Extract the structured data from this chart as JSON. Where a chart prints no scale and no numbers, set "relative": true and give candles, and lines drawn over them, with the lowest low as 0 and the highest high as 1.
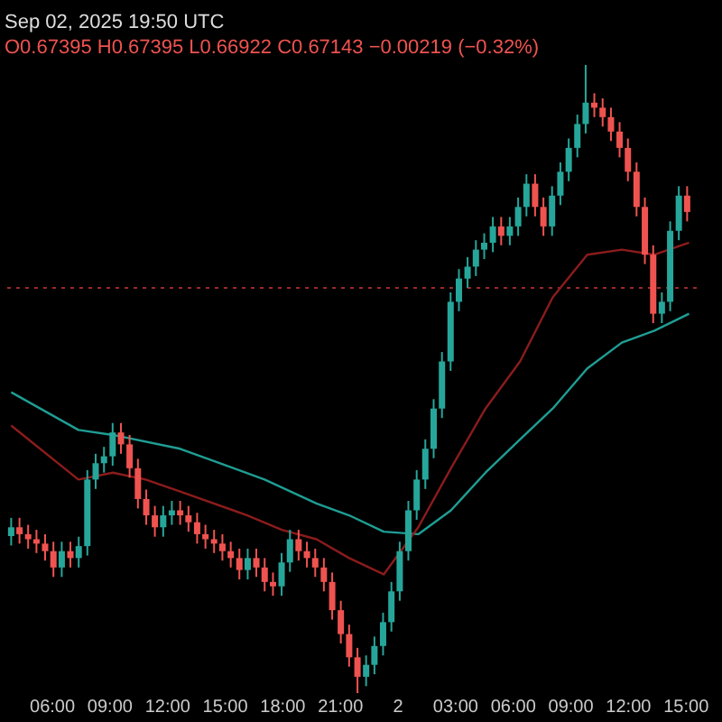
{
  "chart_data": {
    "type": "candlestick",
    "title": "Sep 02, 2025 19:50 UTC",
    "subtitle": "O0.67395 H0.67395 L0.66922 C0.67143 −0.00219 (−0.32%)",
    "relative": true,
    "grid": false,
    "x": [
      "2025-09-01T03:54",
      "2025-09-01T04:20",
      "2025-09-01T04:47",
      "2025-09-01T05:13",
      "2025-09-01T05:40",
      "2025-09-01T06:06",
      "2025-09-01T06:32",
      "2025-09-01T06:59",
      "2025-09-01T07:25",
      "2025-09-01T07:52",
      "2025-09-01T08:18",
      "2025-09-01T08:44",
      "2025-09-01T09:11",
      "2025-09-01T09:37",
      "2025-09-01T10:04",
      "2025-09-01T10:30",
      "2025-09-01T10:56",
      "2025-09-01T11:23",
      "2025-09-01T11:49",
      "2025-09-01T12:16",
      "2025-09-01T12:42",
      "2025-09-01T13:08",
      "2025-09-01T13:35",
      "2025-09-01T14:01",
      "2025-09-01T14:28",
      "2025-09-01T14:54",
      "2025-09-01T15:20",
      "2025-09-01T15:47",
      "2025-09-01T16:13",
      "2025-09-01T16:40",
      "2025-09-01T17:06",
      "2025-09-01T17:32",
      "2025-09-01T17:59",
      "2025-09-01T18:25",
      "2025-09-01T18:52",
      "2025-09-01T19:18",
      "2025-09-01T19:44",
      "2025-09-01T20:11",
      "2025-09-01T20:37",
      "2025-09-01T21:04",
      "2025-09-01T21:30",
      "2025-09-01T21:56",
      "2025-09-01T22:23",
      "2025-09-01T22:49",
      "2025-09-01T23:16",
      "2025-09-01T23:42",
      "2025-09-02T00:08",
      "2025-09-02T00:35",
      "2025-09-02T01:01",
      "2025-09-02T01:28",
      "2025-09-02T01:54",
      "2025-09-02T02:20",
      "2025-09-02T02:47",
      "2025-09-02T03:13",
      "2025-09-02T03:40",
      "2025-09-02T04:06",
      "2025-09-02T04:32",
      "2025-09-02T04:59",
      "2025-09-02T05:25",
      "2025-09-02T05:52",
      "2025-09-02T06:18",
      "2025-09-02T06:44",
      "2025-09-02T07:11",
      "2025-09-02T07:37",
      "2025-09-02T08:04",
      "2025-09-02T08:30",
      "2025-09-02T08:56",
      "2025-09-02T09:23",
      "2025-09-02T09:49",
      "2025-09-02T10:16",
      "2025-09-02T10:42",
      "2025-09-02T11:08",
      "2025-09-02T11:35",
      "2025-09-02T12:01",
      "2025-09-02T12:28",
      "2025-09-02T12:54",
      "2025-09-02T13:20",
      "2025-09-02T13:47",
      "2025-09-02T14:13",
      "2025-09-02T14:40",
      "2025-09-02T15:06"
    ],
    "ohlc": [
      [
        0.25,
        0.279,
        0.235,
        0.264
      ],
      [
        0.264,
        0.279,
        0.238,
        0.253
      ],
      [
        0.253,
        0.268,
        0.23,
        0.245
      ],
      [
        0.245,
        0.26,
        0.223,
        0.238
      ],
      [
        0.238,
        0.253,
        0.211,
        0.226
      ],
      [
        0.226,
        0.241,
        0.185,
        0.2
      ],
      [
        0.2,
        0.241,
        0.185,
        0.226
      ],
      [
        0.226,
        0.241,
        0.2,
        0.215
      ],
      [
        0.215,
        0.249,
        0.2,
        0.234
      ],
      [
        0.234,
        0.355,
        0.219,
        0.34
      ],
      [
        0.34,
        0.381,
        0.325,
        0.366
      ],
      [
        0.366,
        0.392,
        0.351,
        0.377
      ],
      [
        0.377,
        0.43,
        0.362,
        0.415
      ],
      [
        0.415,
        0.43,
        0.381,
        0.396
      ],
      [
        0.396,
        0.411,
        0.343,
        0.358
      ],
      [
        0.358,
        0.373,
        0.294,
        0.309
      ],
      [
        0.309,
        0.324,
        0.268,
        0.283
      ],
      [
        0.283,
        0.298,
        0.249,
        0.264
      ],
      [
        0.264,
        0.298,
        0.249,
        0.283
      ],
      [
        0.283,
        0.306,
        0.268,
        0.291
      ],
      [
        0.291,
        0.306,
        0.268,
        0.283
      ],
      [
        0.283,
        0.298,
        0.257,
        0.272
      ],
      [
        0.272,
        0.287,
        0.238,
        0.253
      ],
      [
        0.253,
        0.268,
        0.23,
        0.245
      ],
      [
        0.245,
        0.26,
        0.223,
        0.238
      ],
      [
        0.238,
        0.253,
        0.211,
        0.226
      ],
      [
        0.226,
        0.241,
        0.2,
        0.215
      ],
      [
        0.215,
        0.23,
        0.181,
        0.196
      ],
      [
        0.196,
        0.23,
        0.181,
        0.215
      ],
      [
        0.215,
        0.23,
        0.185,
        0.2
      ],
      [
        0.2,
        0.215,
        0.162,
        0.177
      ],
      [
        0.177,
        0.192,
        0.155,
        0.17
      ],
      [
        0.17,
        0.223,
        0.155,
        0.208
      ],
      [
        0.208,
        0.26,
        0.193,
        0.245
      ],
      [
        0.245,
        0.26,
        0.211,
        0.226
      ],
      [
        0.226,
        0.241,
        0.2,
        0.215
      ],
      [
        0.215,
        0.23,
        0.185,
        0.2
      ],
      [
        0.2,
        0.215,
        0.162,
        0.177
      ],
      [
        0.177,
        0.192,
        0.117,
        0.132
      ],
      [
        0.132,
        0.147,
        0.079,
        0.094
      ],
      [
        0.094,
        0.109,
        0.042,
        0.057
      ],
      [
        0.057,
        0.072,
        0.0,
        0.026
      ],
      [
        0.026,
        0.06,
        0.011,
        0.045
      ],
      [
        0.045,
        0.09,
        0.03,
        0.075
      ],
      [
        0.075,
        0.128,
        0.06,
        0.113
      ],
      [
        0.113,
        0.177,
        0.098,
        0.162
      ],
      [
        0.162,
        0.241,
        0.147,
        0.226
      ],
      [
        0.226,
        0.306,
        0.211,
        0.291
      ],
      [
        0.291,
        0.355,
        0.276,
        0.34
      ],
      [
        0.34,
        0.404,
        0.325,
        0.389
      ],
      [
        0.389,
        0.468,
        0.374,
        0.453
      ],
      [
        0.453,
        0.543,
        0.438,
        0.528
      ],
      [
        0.528,
        0.638,
        0.513,
        0.623
      ],
      [
        0.623,
        0.675,
        0.608,
        0.66
      ],
      [
        0.66,
        0.694,
        0.645,
        0.679
      ],
      [
        0.679,
        0.721,
        0.664,
        0.706
      ],
      [
        0.706,
        0.732,
        0.691,
        0.717
      ],
      [
        0.717,
        0.758,
        0.702,
        0.743
      ],
      [
        0.743,
        0.758,
        0.713,
        0.728
      ],
      [
        0.728,
        0.758,
        0.713,
        0.743
      ],
      [
        0.743,
        0.789,
        0.728,
        0.774
      ],
      [
        0.774,
        0.826,
        0.759,
        0.811
      ],
      [
        0.811,
        0.826,
        0.759,
        0.774
      ],
      [
        0.774,
        0.789,
        0.728,
        0.743
      ],
      [
        0.743,
        0.807,
        0.728,
        0.792
      ],
      [
        0.792,
        0.845,
        0.777,
        0.83
      ],
      [
        0.83,
        0.883,
        0.815,
        0.868
      ],
      [
        0.868,
        0.921,
        0.853,
        0.906
      ],
      [
        0.906,
        1.0,
        0.891,
        0.94
      ],
      [
        0.94,
        0.955,
        0.917,
        0.932
      ],
      [
        0.932,
        0.947,
        0.902,
        0.917
      ],
      [
        0.917,
        0.932,
        0.879,
        0.894
      ],
      [
        0.894,
        0.909,
        0.853,
        0.868
      ],
      [
        0.868,
        0.883,
        0.815,
        0.83
      ],
      [
        0.83,
        0.845,
        0.759,
        0.774
      ],
      [
        0.774,
        0.789,
        0.683,
        0.698
      ],
      [
        0.698,
        0.713,
        0.589,
        0.604
      ],
      [
        0.604,
        0.638,
        0.589,
        0.623
      ],
      [
        0.623,
        0.751,
        0.608,
        0.736
      ],
      [
        0.736,
        0.807,
        0.721,
        0.792
      ],
      [
        0.792,
        0.807,
        0.751,
        0.766
      ]
    ],
    "series": [
      {
        "type": "line",
        "color": "#1f9e94",
        "x": [
          "2025-09-01T03:54",
          "2025-09-01T07:24",
          "2025-09-01T09:12",
          "2025-09-01T12:42",
          "2025-09-01T17:06",
          "2025-09-01T19:48",
          "2025-09-01T21:30",
          "2025-09-01T23:18",
          "2025-09-02T01:06",
          "2025-09-02T02:48",
          "2025-09-02T04:36",
          "2025-09-02T06:24",
          "2025-09-02T08:06",
          "2025-09-02T09:54",
          "2025-09-02T11:42",
          "2025-09-02T13:24",
          "2025-09-02T15:12"
        ],
        "values": [
          0.479,
          0.419,
          0.411,
          0.389,
          0.34,
          0.302,
          0.283,
          0.257,
          0.253,
          0.291,
          0.351,
          0.404,
          0.453,
          0.517,
          0.558,
          0.577,
          0.604
        ]
      },
      {
        "type": "line",
        "color": "#8b1c1c",
        "x": [
          "2025-09-01T03:54",
          "2025-09-01T07:24",
          "2025-09-01T09:12",
          "2025-09-01T10:54",
          "2025-09-01T12:42",
          "2025-09-01T16:12",
          "2025-09-01T18:00",
          "2025-09-01T19:48",
          "2025-09-01T21:30",
          "2025-09-01T23:18",
          "2025-09-02T01:06",
          "2025-09-02T02:48",
          "2025-09-02T04:36",
          "2025-09-02T06:24",
          "2025-09-02T08:06",
          "2025-09-02T09:54",
          "2025-09-02T11:42",
          "2025-09-02T13:24",
          "2025-09-02T15:12"
        ],
        "values": [
          0.426,
          0.34,
          0.351,
          0.34,
          0.321,
          0.283,
          0.26,
          0.245,
          0.215,
          0.189,
          0.264,
          0.358,
          0.453,
          0.528,
          0.63,
          0.698,
          0.706,
          0.698,
          0.717
        ]
      }
    ],
    "ref_lines": [
      {
        "axis": "y",
        "value": 0.645,
        "color": "#9b2a2a",
        "line_style": "dotted"
      }
    ],
    "xlim": [
      "2025-09-01T03:36",
      "2025-09-02T15:36"
    ],
    "xticks": [
      {
        "value": "2025-09-01T06:00",
        "label": "06:00"
      },
      {
        "value": "2025-09-01T09:00",
        "label": "09:00"
      },
      {
        "value": "2025-09-01T12:00",
        "label": "12:00"
      },
      {
        "value": "2025-09-01T15:00",
        "label": "15:00"
      },
      {
        "value": "2025-09-01T18:00",
        "label": "18:00"
      },
      {
        "value": "2025-09-01T21:00",
        "label": "21:00"
      },
      {
        "value": "2025-09-02T00:00",
        "label": "2"
      },
      {
        "value": "2025-09-02T03:00",
        "label": "03:00"
      },
      {
        "value": "2025-09-02T06:00",
        "label": "06:00"
      },
      {
        "value": "2025-09-02T09:00",
        "label": "09:00"
      },
      {
        "value": "2025-09-02T12:00",
        "label": "12:00"
      },
      {
        "value": "2025-09-02T15:00",
        "label": "15:00"
      }
    ]
  }
}
